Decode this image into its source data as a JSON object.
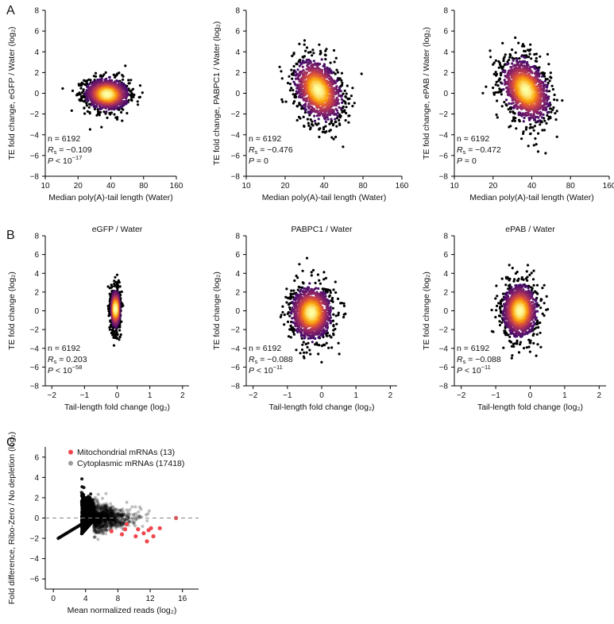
{
  "panel_labels": [
    "A",
    "B",
    "C"
  ],
  "chart_data": [
    {
      "panel": "A",
      "type": "scatter",
      "title": "",
      "xlabel": "Median poly(A)-tail length (Water)",
      "ylabel": "TE fold change, eGFP / Water (log₂)",
      "x_scale": "log",
      "x_ticks": [
        10,
        20,
        40,
        80,
        160
      ],
      "x_tick_labels": [
        "10",
        "20",
        "40",
        "80",
        "160"
      ],
      "y_ticks": [
        -8,
        -6,
        -4,
        -2,
        0,
        2,
        4,
        6,
        8
      ],
      "xlim": [
        10,
        160
      ],
      "ylim": [
        -8,
        8
      ],
      "density_center": [
        37,
        -0.1
      ],
      "density_spread": [
        0.24,
        0.75
      ],
      "stats": {
        "n": "n = 6192",
        "rs": "= −0.109",
        "p": "< 10",
        "p_exp": "−17"
      }
    },
    {
      "panel": "A",
      "type": "scatter",
      "title": "",
      "xlabel": "Median poly(A)-tail length (Water)",
      "ylabel": "TE fold change, PABPC1 / Water (log₂)",
      "x_scale": "log",
      "x_ticks": [
        10,
        20,
        40,
        80,
        160
      ],
      "x_tick_labels": [
        "10",
        "20",
        "40",
        "80",
        "160"
      ],
      "y_ticks": [
        -8,
        -6,
        -4,
        -2,
        0,
        2,
        4,
        6,
        8
      ],
      "xlim": [
        10,
        160
      ],
      "ylim": [
        -8,
        8
      ],
      "density_center": [
        36,
        0.3
      ],
      "density_spread": [
        0.22,
        1.4
      ],
      "stats": {
        "n": "n = 6192",
        "rs": "= −0.476",
        "p": "= 0",
        "p_exp": ""
      }
    },
    {
      "panel": "A",
      "type": "scatter",
      "title": "",
      "xlabel": "Median poly(A)-tail length (Water)",
      "ylabel": "TE fold change, ePAB / Water (log₂)",
      "x_scale": "log",
      "x_ticks": [
        10,
        20,
        40,
        80,
        160
      ],
      "x_tick_labels": [
        "10",
        "20",
        "40",
        "80",
        "160"
      ],
      "y_ticks": [
        -8,
        -6,
        -4,
        -2,
        0,
        2,
        4,
        6,
        8
      ],
      "xlim": [
        10,
        160
      ],
      "ylim": [
        -8,
        8
      ],
      "density_center": [
        36,
        0.3
      ],
      "density_spread": [
        0.22,
        1.4
      ],
      "stats": {
        "n": "n = 6192",
        "rs": "= −0.472",
        "p": "= 0",
        "p_exp": ""
      }
    },
    {
      "panel": "B",
      "type": "scatter",
      "title": "eGFP / Water",
      "xlabel": "Tail-length fold change (log₂)",
      "ylabel": "TE fold change (log₂)",
      "x_ticks": [
        -2,
        -1,
        0,
        1,
        2
      ],
      "y_ticks": [
        -8,
        -6,
        -4,
        -2,
        0,
        2,
        4,
        6,
        8
      ],
      "xlim": [
        -2.2,
        2.2
      ],
      "ylim": [
        -8,
        8
      ],
      "density_center": [
        -0.05,
        0.2
      ],
      "density_spread": [
        0.07,
        1.0
      ],
      "stats": {
        "n": "n =   6192",
        "rs": "= 0.203",
        "p": "< 10",
        "p_exp": "−58"
      }
    },
    {
      "panel": "B",
      "type": "scatter",
      "title": "PABPC1 / Water",
      "xlabel": "Tail-length fold change (log₂)",
      "ylabel": "TE fold change (log₂)",
      "x_ticks": [
        -2,
        -1,
        0,
        1,
        2
      ],
      "y_ticks": [
        -8,
        -6,
        -4,
        -2,
        0,
        2,
        4,
        6,
        8
      ],
      "xlim": [
        -2.2,
        2.2
      ],
      "ylim": [
        -8,
        8
      ],
      "density_center": [
        -0.3,
        -0.2
      ],
      "density_spread": [
        0.3,
        1.4
      ],
      "stats": {
        "n": "n =   6192",
        "rs": "= −0.088",
        "p": "< 10",
        "p_exp": "−11"
      }
    },
    {
      "panel": "B",
      "type": "scatter",
      "title": "ePAB / Water",
      "xlabel": "Tail-length fold change (log₂)",
      "ylabel": "TE fold change (log₂)",
      "x_ticks": [
        -2,
        -1,
        0,
        1,
        2
      ],
      "y_ticks": [
        -8,
        -6,
        -4,
        -2,
        0,
        2,
        4,
        6,
        8
      ],
      "xlim": [
        -2.2,
        2.2
      ],
      "ylim": [
        -8,
        8
      ],
      "density_center": [
        -0.3,
        0.0
      ],
      "density_spread": [
        0.25,
        1.4
      ],
      "stats": {
        "n": "n =   6192",
        "rs": "= −0.088",
        "p": "< 10",
        "p_exp": "−11"
      }
    },
    {
      "panel": "C",
      "type": "scatter",
      "title": "",
      "xlabel": "Mean normalized reads (log₂)",
      "ylabel": "Fold difference, Ribo-Zero / No depletion (log₂)",
      "x_ticks": [
        0,
        4,
        8,
        12,
        16
      ],
      "y_ticks": [
        -6,
        -4,
        -2,
        0,
        2,
        4,
        6
      ],
      "xlim": [
        -1,
        18
      ],
      "ylim": [
        -7,
        7
      ],
      "reference_line_y": 0,
      "legend": [
        {
          "label": "Mitochondrial mRNAs (13)",
          "color": "#f0474e"
        },
        {
          "label": "Cytoplasmic mRNAs (17418)",
          "color": "#9a9a9a"
        }
      ],
      "mitochondrial_points": [
        [
          7.2,
          -1.3
        ],
        [
          8.5,
          -1.6
        ],
        [
          8.9,
          -1.1
        ],
        [
          9.1,
          -0.6
        ],
        [
          10.2,
          -1.8
        ],
        [
          10.5,
          -1.1
        ],
        [
          11.2,
          -1.5
        ],
        [
          11.6,
          -2.3
        ],
        [
          11.8,
          -1.2
        ],
        [
          12.1,
          -1.0
        ],
        [
          12.4,
          -1.8
        ],
        [
          13.2,
          -1.0
        ],
        [
          15.2,
          0.0
        ]
      ]
    }
  ],
  "colors": {
    "point": "#000000",
    "mito": "#f0474e",
    "cyto": "#9a9a9a",
    "refline": "#888888"
  }
}
